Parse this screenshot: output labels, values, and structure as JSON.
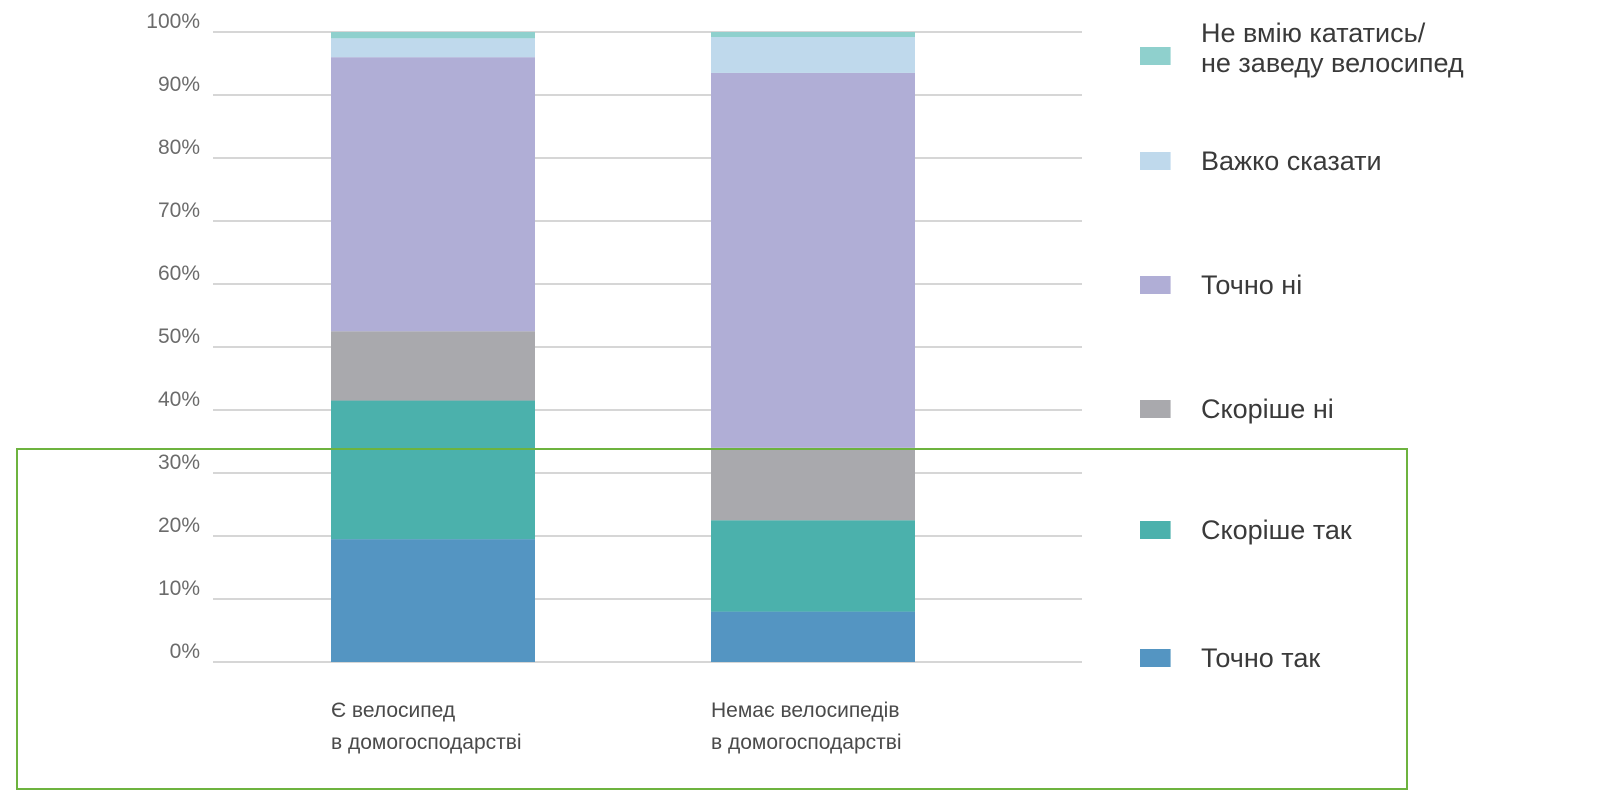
{
  "chart_data": {
    "type": "bar",
    "stacked": true,
    "categories": [
      [
        "Є велосипед",
        "в домогосподарстві"
      ],
      [
        "Немає велосипедів",
        "в домогосподарстві"
      ]
    ],
    "series": [
      {
        "name": "Точно так",
        "color": "#5495c2",
        "values": [
          19.5,
          8
        ]
      },
      {
        "name": "Скоріше так",
        "color": "#4bb1ac",
        "values": [
          22,
          14.5
        ]
      },
      {
        "name": "Скоріше ні",
        "color": "#a9a9ad",
        "values": [
          11,
          11.5
        ]
      },
      {
        "name": "Точно ні",
        "color": "#b0aed6",
        "values": [
          43.5,
          59.5
        ]
      },
      {
        "name": "Важко сказати",
        "color": "#bfd9ec",
        "values": [
          3,
          5.7
        ]
      },
      {
        "name": [
          "Не вмію кататись/",
          "не заведу велосипед"
        ],
        "color": "#8fd0cd",
        "values": [
          1,
          0.8
        ]
      }
    ],
    "yticks": [
      "0%",
      "10%",
      "20%",
      "30%",
      "40%",
      "50%",
      "60%",
      "70%",
      "80%",
      "90%",
      "100%"
    ],
    "ylim": [
      0,
      100
    ],
    "grid": true,
    "legend_position": "right"
  }
}
